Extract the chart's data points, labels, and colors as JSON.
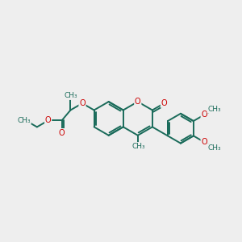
{
  "bg_color": "#eeeeee",
  "bond_color": "#1a6b5a",
  "oxygen_color": "#cc0000",
  "lw": 1.4,
  "fs": 7.0,
  "xlim": [
    -4.8,
    4.8
  ],
  "ylim": [
    -3.2,
    3.2
  ]
}
